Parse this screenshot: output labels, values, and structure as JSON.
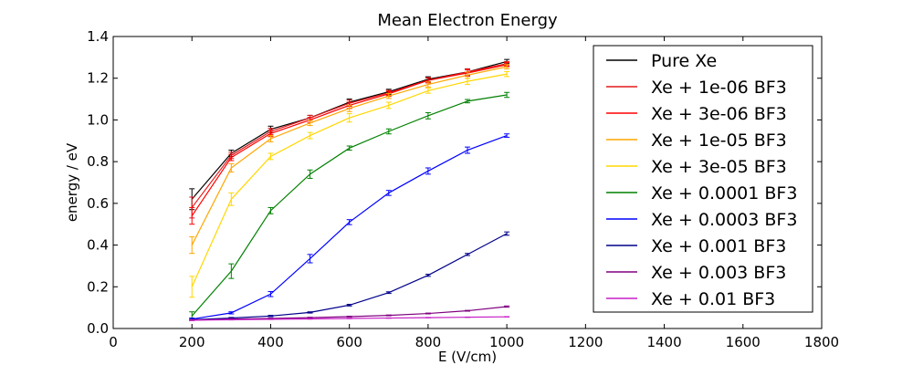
{
  "chart_data": {
    "type": "line",
    "title": "Mean Electron Energy",
    "xlabel": "E (V/cm)",
    "ylabel": "energy / eV",
    "xlim": [
      0,
      1800
    ],
    "ylim": [
      0,
      1.4
    ],
    "xticks": [
      "0",
      "200",
      "400",
      "600",
      "800",
      "1000",
      "1200",
      "1400",
      "1600",
      "1800"
    ],
    "yticks": [
      "0.0",
      "0.2",
      "0.4",
      "0.6",
      "0.8",
      "1.0",
      "1.2",
      "1.4"
    ],
    "grid": false,
    "legend_position": "top-right",
    "x": [
      200,
      300,
      400,
      500,
      600,
      700,
      800,
      900,
      1000
    ],
    "series": [
      {
        "name": "Pure Xe",
        "color": "#000000",
        "values": [
          0.62,
          0.84,
          0.955,
          1.01,
          1.085,
          1.135,
          1.195,
          1.23,
          1.28
        ],
        "errors": [
          0.05,
          0.015,
          0.015,
          0.012,
          0.015,
          0.012,
          0.012,
          0.015,
          0.01
        ]
      },
      {
        "name": "Xe + 1e-06 BF3",
        "color": "#e41a1c",
        "values": [
          0.58,
          0.83,
          0.945,
          1.01,
          1.08,
          1.13,
          1.19,
          1.23,
          1.27
        ],
        "errors": [
          0.05,
          0.015,
          0.015,
          0.012,
          0.015,
          0.012,
          0.012,
          0.015,
          0.01
        ]
      },
      {
        "name": "Xe + 3e-06 BF3",
        "color": "#ff0000",
        "values": [
          0.54,
          0.82,
          0.935,
          1.0,
          1.07,
          1.125,
          1.19,
          1.225,
          1.265
        ],
        "errors": [
          0.04,
          0.015,
          0.015,
          0.012,
          0.015,
          0.012,
          0.012,
          0.015,
          0.01
        ]
      },
      {
        "name": "Xe + 1e-05 BF3",
        "color": "#ffa500",
        "values": [
          0.4,
          0.77,
          0.91,
          0.985,
          1.055,
          1.115,
          1.17,
          1.215,
          1.255
        ],
        "errors": [
          0.04,
          0.02,
          0.015,
          0.012,
          0.015,
          0.012,
          0.012,
          0.015,
          0.01
        ]
      },
      {
        "name": "Xe + 3e-05 BF3",
        "color": "#ffd700",
        "values": [
          0.2,
          0.62,
          0.825,
          0.925,
          1.01,
          1.07,
          1.14,
          1.185,
          1.22
        ],
        "errors": [
          0.05,
          0.03,
          0.015,
          0.015,
          0.02,
          0.015,
          0.012,
          0.015,
          0.012
        ]
      },
      {
        "name": "Xe + 0.0001 BF3",
        "color": "#008000",
        "values": [
          0.06,
          0.275,
          0.565,
          0.74,
          0.865,
          0.945,
          1.02,
          1.09,
          1.12
        ],
        "errors": [
          0.02,
          0.035,
          0.015,
          0.02,
          0.01,
          0.012,
          0.015,
          0.008,
          0.012
        ]
      },
      {
        "name": "Xe + 0.0003 BF3",
        "color": "#0000ff",
        "values": [
          0.045,
          0.075,
          0.165,
          0.335,
          0.51,
          0.65,
          0.755,
          0.855,
          0.925
        ],
        "errors": [
          0.005,
          0.005,
          0.012,
          0.02,
          0.012,
          0.012,
          0.015,
          0.015,
          0.008
        ]
      },
      {
        "name": "Xe + 0.001 BF3",
        "color": "#00008b",
        "values": [
          0.042,
          0.05,
          0.06,
          0.077,
          0.112,
          0.172,
          0.255,
          0.355,
          0.455
        ],
        "errors": [
          0.003,
          0.003,
          0.003,
          0.003,
          0.004,
          0.004,
          0.005,
          0.005,
          0.008
        ]
      },
      {
        "name": "Xe + 0.003 BF3",
        "color": "#800080",
        "values": [
          0.04,
          0.045,
          0.048,
          0.052,
          0.057,
          0.063,
          0.072,
          0.085,
          0.105
        ],
        "errors": [
          0.002,
          0.002,
          0.002,
          0.002,
          0.002,
          0.002,
          0.002,
          0.002,
          0.003
        ]
      },
      {
        "name": "Xe + 0.01 BF3",
        "color": "#c71fc7",
        "values": [
          0.04,
          0.042,
          0.044,
          0.046,
          0.048,
          0.05,
          0.052,
          0.054,
          0.056
        ],
        "errors": [
          0.001,
          0.001,
          0.001,
          0.001,
          0.001,
          0.001,
          0.001,
          0.001,
          0.001
        ]
      }
    ]
  }
}
